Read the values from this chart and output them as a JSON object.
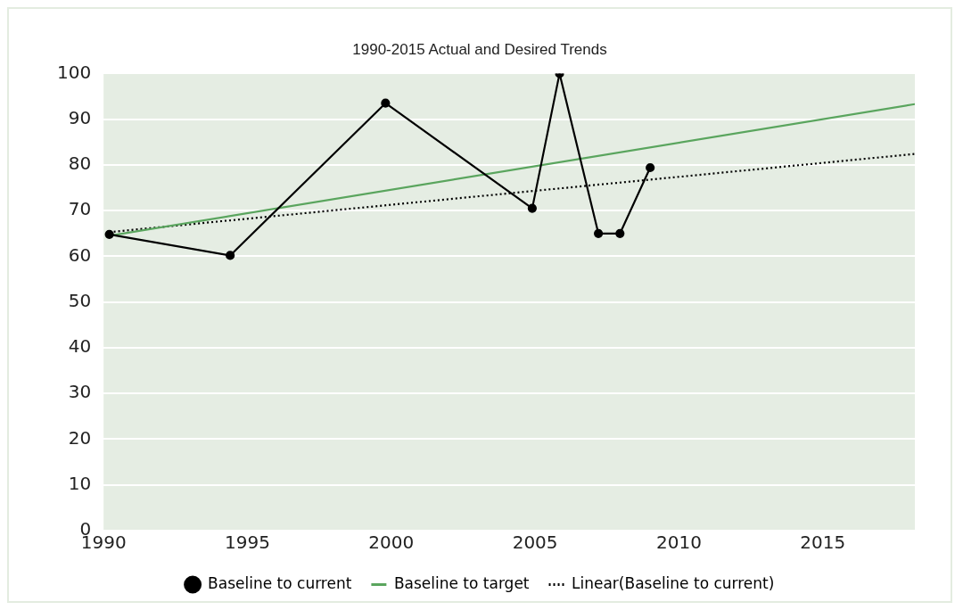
{
  "chart_data": {
    "type": "line",
    "title": "1990-2015 Actual and Desired Trends",
    "xlim": [
      1990,
      2018.2
    ],
    "xticks": [
      1990,
      1995,
      2000,
      2005,
      2010,
      2015
    ],
    "ylim": [
      0,
      100
    ],
    "yticks": [
      0,
      10,
      20,
      30,
      40,
      50,
      60,
      70,
      80,
      90,
      100
    ],
    "grid": "y",
    "legend": "bottom",
    "series": [
      {
        "name": "Baseline to current",
        "color": "#000000",
        "marker": "circle",
        "line_style": "solid",
        "x": [
          1990.2,
          1994.4,
          1999.8,
          2004.9,
          2005.85,
          2007.2,
          2007.95,
          2009.0
        ],
        "values": [
          64.8,
          60.2,
          93.5,
          70.5,
          100,
          65,
          65,
          79.4
        ]
      },
      {
        "name": "Baseline to target",
        "color": "#5aa55e",
        "marker": "none",
        "line_style": "solid",
        "x": [
          1990.2,
          2018.2
        ],
        "values": [
          64.5,
          93.3
        ]
      },
      {
        "name": "Linear(Baseline to current)",
        "color": "#000000",
        "marker": "none",
        "line_style": "dotted",
        "x": [
          1990.2,
          2018.2
        ],
        "values": [
          65.3,
          82.4
        ]
      }
    ]
  }
}
